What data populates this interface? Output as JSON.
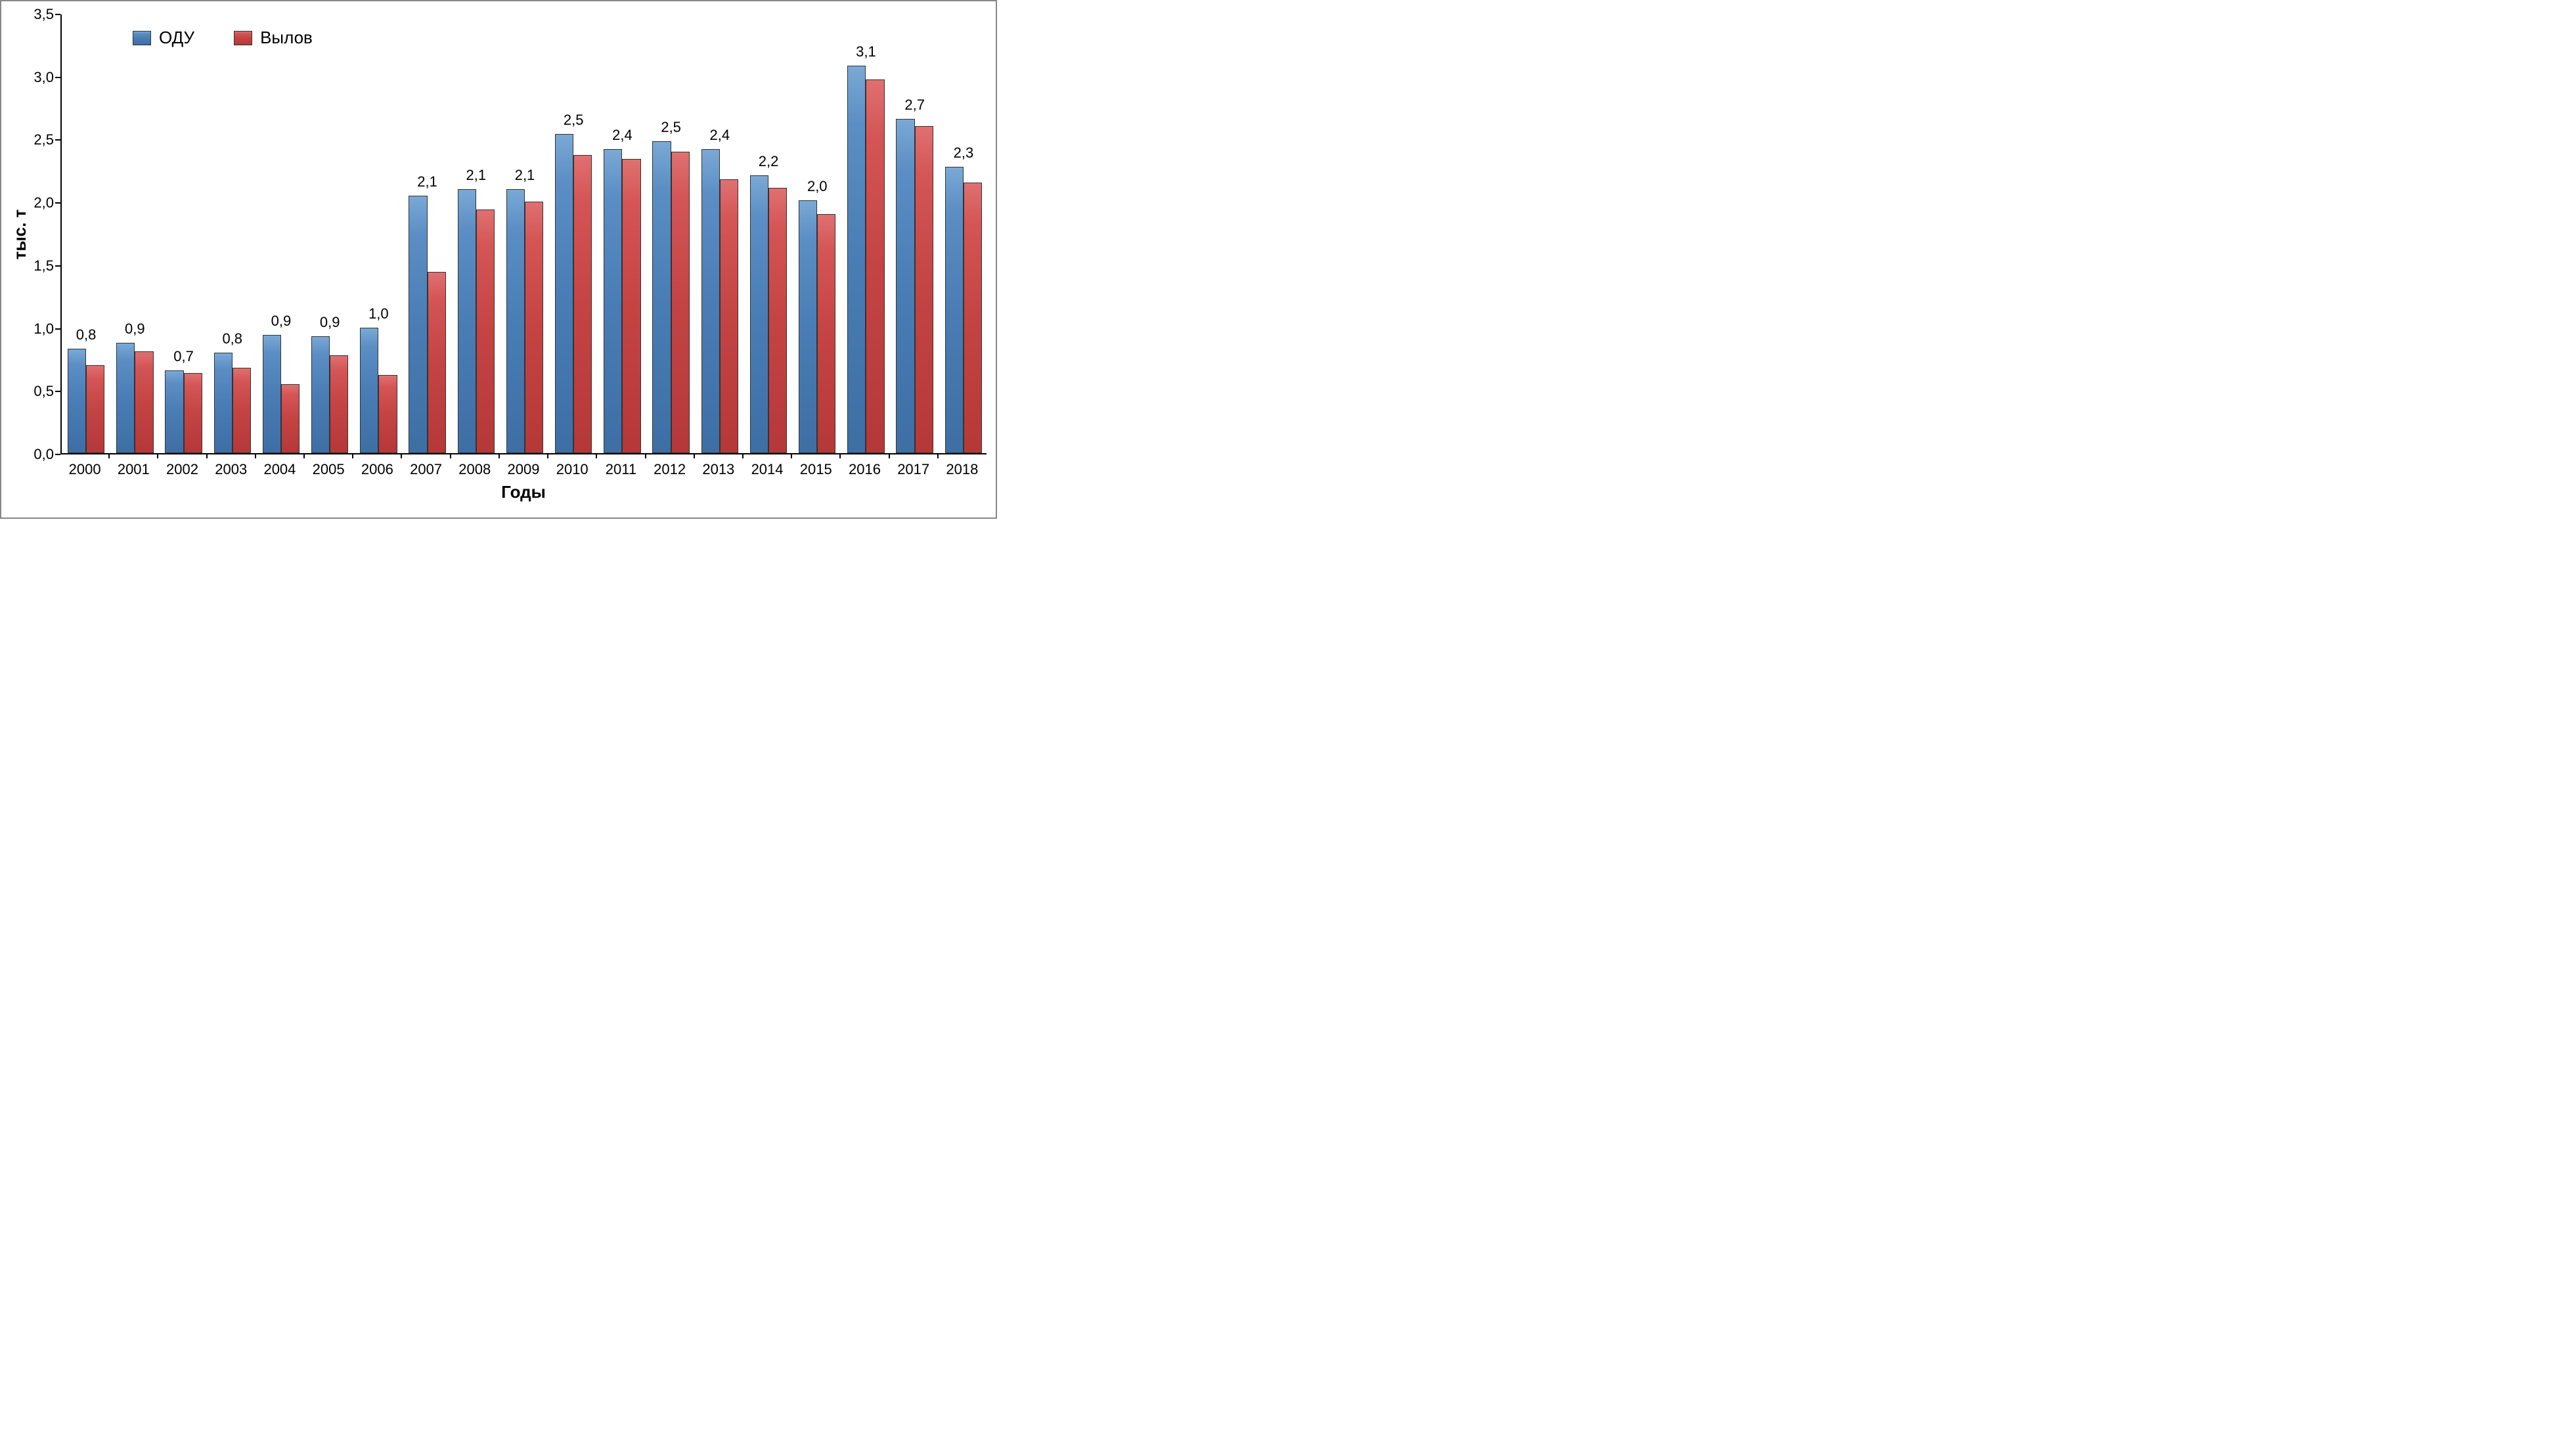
{
  "chart": {
    "type": "bar",
    "y_axis_title": "тыс. т",
    "x_axis_title": "Годы",
    "background_color": "#ffffff",
    "border_color": "#888888",
    "ylim": [
      0.0,
      3.5
    ],
    "ytick_step": 0.5,
    "y_ticks": [
      {
        "val": 0.0,
        "label": "0,0"
      },
      {
        "val": 0.5,
        "label": "0,5"
      },
      {
        "val": 1.0,
        "label": "1,0"
      },
      {
        "val": 1.5,
        "label": "1,5"
      },
      {
        "val": 2.0,
        "label": "2,0"
      },
      {
        "val": 2.5,
        "label": "2,5"
      },
      {
        "val": 3.0,
        "label": "3,0"
      },
      {
        "val": 3.5,
        "label": "3,5"
      }
    ],
    "categories": [
      "2000",
      "2001",
      "2002",
      "2003",
      "2004",
      "2005",
      "2006",
      "2007",
      "2008",
      "2009",
      "2010",
      "2011",
      "2012",
      "2013",
      "2014",
      "2015",
      "2016",
      "2017",
      "2018"
    ],
    "series": [
      {
        "name": "ОДУ",
        "color_top": "#7aa9d6",
        "color_bottom": "#3d6fa5",
        "css_class": "bar-blue",
        "values": [
          0.83,
          0.88,
          0.66,
          0.8,
          0.94,
          0.93,
          1.0,
          2.05,
          2.1,
          2.1,
          2.54,
          2.42,
          2.48,
          2.42,
          2.21,
          2.01,
          3.08,
          2.66,
          2.28
        ],
        "labels": [
          "0,8",
          "0,9",
          "0,7",
          "0,8",
          "0,9",
          "0,9",
          "1,0",
          "2,1",
          "2,1",
          "2,1",
          "2,5",
          "2,4",
          "2,5",
          "2,4",
          "2,2",
          "2,0",
          "3,1",
          "2,7",
          "2,3"
        ]
      },
      {
        "name": "Вылов",
        "color_top": "#e07070",
        "color_bottom": "#b53838",
        "css_class": "bar-red",
        "values": [
          0.7,
          0.81,
          0.64,
          0.68,
          0.55,
          0.78,
          0.62,
          1.44,
          1.94,
          2.0,
          2.37,
          2.34,
          2.4,
          2.18,
          2.11,
          1.9,
          2.97,
          2.6,
          2.15
        ],
        "labels": []
      }
    ],
    "bar_width_ratio": 0.38,
    "title_fontsize": 26,
    "label_fontsize": 22,
    "legend_fontsize": 26
  }
}
